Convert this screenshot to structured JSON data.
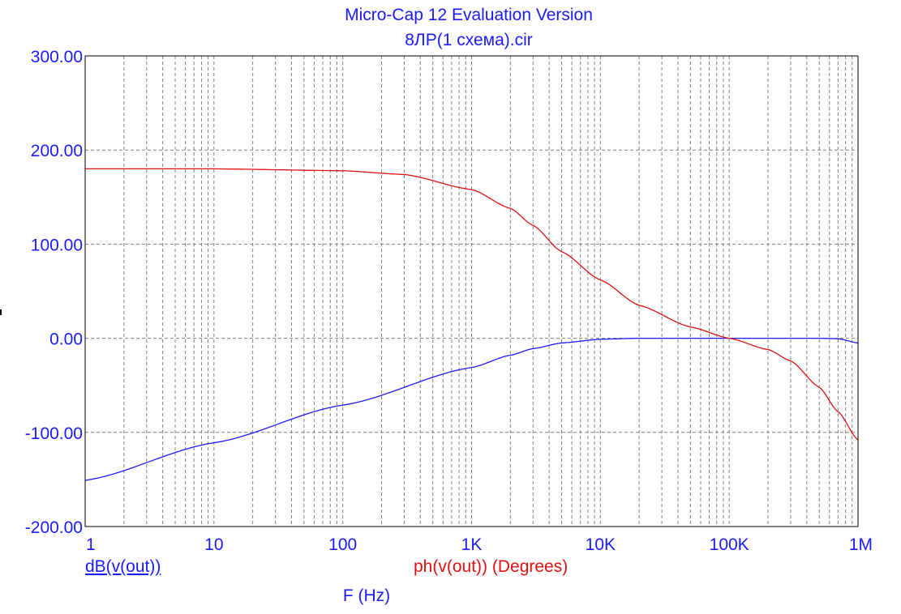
{
  "header": {
    "title": "Micro-Cap 12 Evaluation Version",
    "subtitle": "8ЛР(1 схема).cir"
  },
  "colors": {
    "magnitude": "#1a1aff",
    "phase": "#e01010",
    "grid": "#808080",
    "text": "#1a1aff"
  },
  "chart_data": {
    "type": "line",
    "x_scale": "log",
    "xlim": [
      1,
      1000000
    ],
    "ylim": [
      -200,
      300
    ],
    "grid": true,
    "xlabel": "F (Hz)",
    "x_ticks": [
      {
        "value": 1,
        "label": "1"
      },
      {
        "value": 10,
        "label": "10"
      },
      {
        "value": 100,
        "label": "100"
      },
      {
        "value": 1000,
        "label": "1K"
      },
      {
        "value": 10000,
        "label": "10K"
      },
      {
        "value": 100000,
        "label": "100K"
      },
      {
        "value": 1000000,
        "label": "1M"
      }
    ],
    "y_ticks": [
      {
        "value": 300,
        "label": "300.00"
      },
      {
        "value": 200,
        "label": "200.00"
      },
      {
        "value": 100,
        "label": "100.00"
      },
      {
        "value": 0,
        "label": "0.00"
      },
      {
        "value": -100,
        "label": "-100.00"
      },
      {
        "value": -200,
        "label": "-200.00"
      }
    ],
    "series": [
      {
        "name": "dB(v(out))",
        "color": "#1a1aff",
        "underlined": true,
        "x": [
          1,
          10,
          100,
          1000,
          2000,
          3000,
          5000,
          10000,
          20000,
          50000,
          100000,
          200000,
          500000,
          700000,
          1000000
        ],
        "y": [
          -151,
          -111,
          -71,
          -31,
          -18,
          -11,
          -5,
          -1,
          0,
          0,
          0,
          0,
          0,
          -0.5,
          -5
        ]
      },
      {
        "name": "ph(v(out)) (Degrees)",
        "color": "#e01010",
        "underlined": false,
        "x": [
          1,
          10,
          100,
          300,
          1000,
          2000,
          3000,
          5000,
          10000,
          20000,
          50000,
          100000,
          200000,
          300000,
          500000,
          700000,
          1000000
        ],
        "y": [
          180,
          180,
          178,
          174,
          158,
          138,
          120,
          92,
          62,
          35,
          12,
          0,
          -12,
          -24,
          -52,
          -78,
          -108
        ]
      }
    ]
  }
}
